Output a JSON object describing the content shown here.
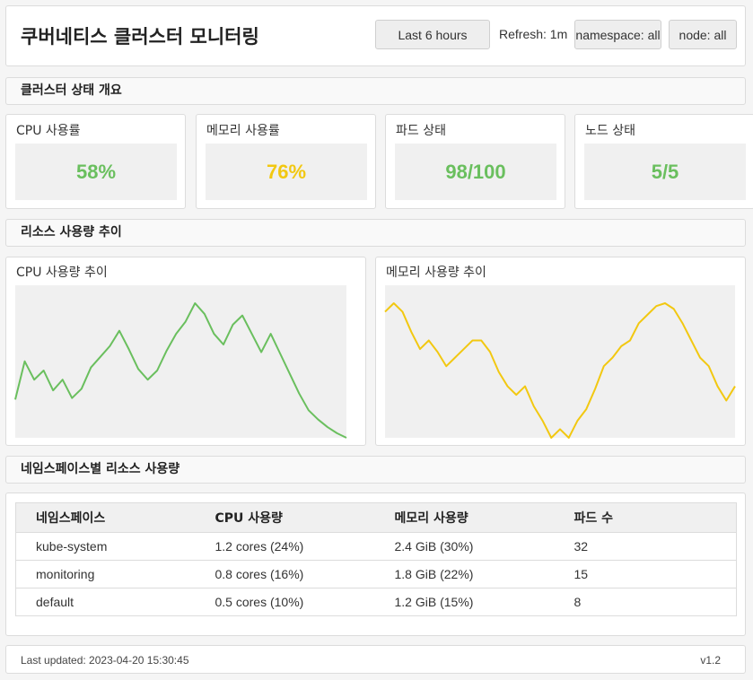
{
  "header": {
    "title": "쿠버네티스 클러스터 모니터링",
    "time_range": "Last 6 hours",
    "refresh": "Refresh: 1m",
    "namespace_filter": "namespace: all",
    "node_filter": "node: all"
  },
  "sections": {
    "overview": "클러스터 상태 개요",
    "trends": "리소스 사용량 추이",
    "namespace": "네임스페이스별 리소스 사용량"
  },
  "stats": [
    {
      "label": "CPU 사용률",
      "value": "58%",
      "color": "#6abf5e"
    },
    {
      "label": "메모리 사용률",
      "value": "76%",
      "color": "#f2c811"
    },
    {
      "label": "파드 상태",
      "value": "98/100",
      "color": "#6abf5e"
    },
    {
      "label": "노드 상태",
      "value": "5/5",
      "color": "#6abf5e"
    }
  ],
  "charts": [
    {
      "label": "CPU 사용량 추이",
      "color": "#6abf5e",
      "values": [
        25,
        50,
        38,
        44,
        31,
        38,
        26,
        32,
        46,
        53,
        60,
        70,
        58,
        45,
        38,
        44,
        57,
        68,
        76,
        88,
        81,
        68,
        61,
        74,
        80,
        68,
        56,
        68,
        55,
        42,
        29,
        18,
        12,
        7,
        3,
        0
      ]
    },
    {
      "label": "메모리 사용량 추이",
      "color": "#f2c811",
      "values": [
        44,
        47,
        44,
        37,
        31,
        34,
        30,
        25,
        28,
        31,
        34,
        34,
        30,
        23,
        18,
        15,
        18,
        11,
        6,
        0,
        3,
        0,
        6,
        10,
        17,
        25,
        28,
        32,
        34,
        40,
        43,
        46,
        47,
        45,
        40,
        34,
        28,
        25,
        18,
        13,
        18
      ]
    }
  ],
  "table": {
    "headers": [
      "네임스페이스",
      "CPU 사용량",
      "메모리 사용량",
      "파드 수"
    ],
    "rows": [
      [
        "kube-system",
        "1.2 cores (24%)",
        "2.4 GiB (30%)",
        "32"
      ],
      [
        "monitoring",
        "0.8 cores (16%)",
        "1.8 GiB (22%)",
        "15"
      ],
      [
        "default",
        "0.5 cores (10%)",
        "1.2 GiB (15%)",
        "8"
      ]
    ]
  },
  "footer": {
    "last_updated": "Last updated: 2023-04-20 15:30:45",
    "version": "v1.2"
  }
}
